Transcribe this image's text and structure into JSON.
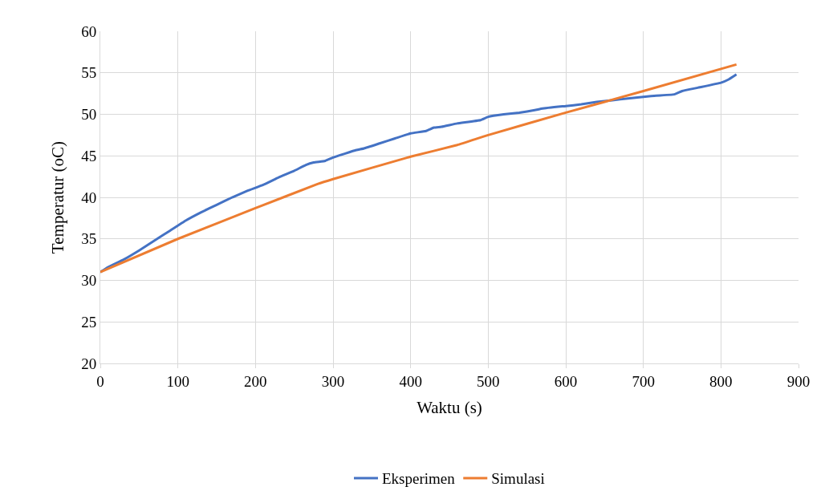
{
  "chart_data": {
    "type": "line",
    "xlabel": "Waktu (s)",
    "ylabel": "Temperatur (oC)",
    "xlim": [
      0,
      900
    ],
    "xticks": [
      0,
      100,
      200,
      300,
      400,
      500,
      600,
      700,
      800,
      900
    ],
    "ylim": [
      20,
      60
    ],
    "yticks": [
      20,
      25,
      30,
      35,
      40,
      45,
      50,
      55,
      60
    ],
    "grid": true,
    "legend": "bottom",
    "marker": "none",
    "line_style": "solid",
    "series": [
      {
        "name": "Eksperimen",
        "color": "#4472c4",
        "x": [
          0,
          10,
          30,
          50,
          70,
          90,
          110,
          130,
          150,
          170,
          190,
          210,
          230,
          250,
          265,
          275,
          290,
          300,
          330,
          340,
          360,
          380,
          400,
          420,
          430,
          440,
          460,
          490,
          500,
          520,
          540,
          560,
          570,
          600,
          620,
          640,
          660,
          680,
          700,
          710,
          740,
          750,
          770,
          800,
          810,
          820
        ],
        "values": [
          31,
          31.6,
          32.5,
          33.6,
          34.8,
          36.0,
          37.2,
          38.2,
          39.1,
          40.0,
          40.8,
          41.5,
          42.4,
          43.2,
          43.9,
          44.2,
          44.4,
          44.8,
          45.7,
          45.9,
          46.5,
          47.1,
          47.7,
          48.0,
          48.4,
          48.5,
          48.9,
          49.3,
          49.7,
          50.0,
          50.2,
          50.5,
          50.7,
          51.0,
          51.2,
          51.5,
          51.7,
          51.9,
          52.1,
          52.2,
          52.4,
          52.8,
          53.2,
          53.8,
          54.2,
          54.8
        ]
      },
      {
        "name": "Simulasi",
        "color": "#ed7d31",
        "x": [
          0,
          100,
          200,
          280,
          300,
          400,
          460,
          500,
          600,
          700,
          820
        ],
        "values": [
          31,
          35.0,
          38.7,
          41.6,
          42.2,
          44.9,
          46.3,
          47.5,
          50.2,
          52.8,
          56.0
        ]
      }
    ]
  }
}
